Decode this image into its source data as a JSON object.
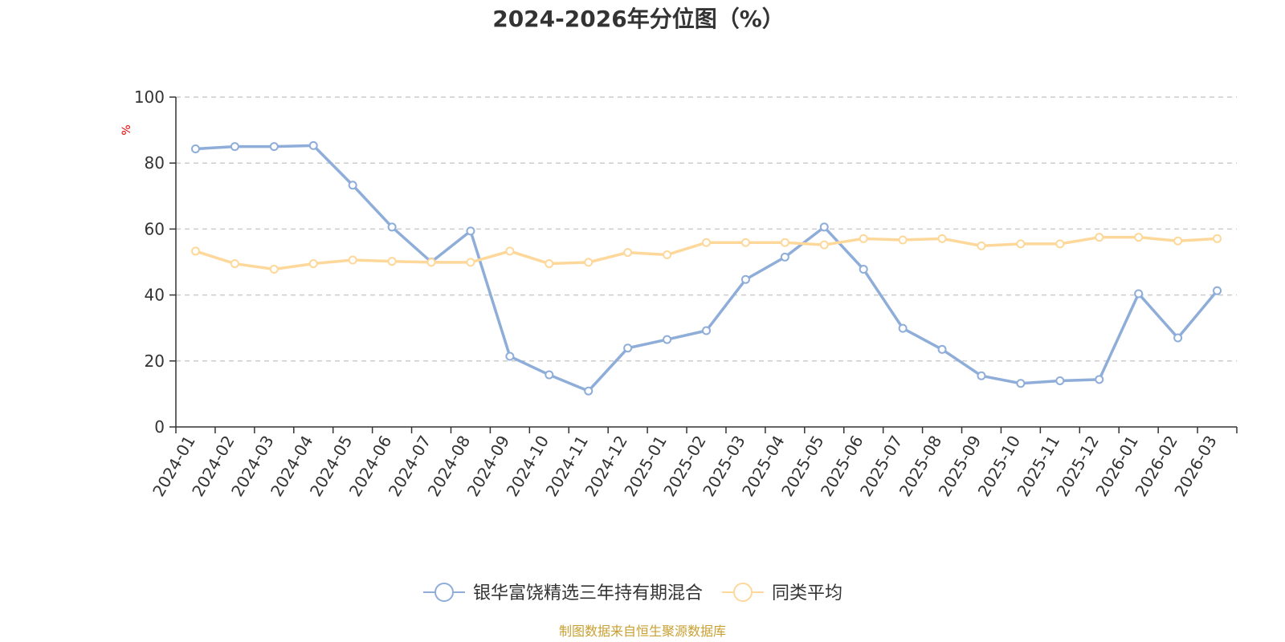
{
  "chart_data": {
    "type": "line",
    "title": "2024-2026年分位图（%）",
    "ylabel": "%",
    "xlabel": "",
    "ylim": [
      0,
      100
    ],
    "yticks": [
      0,
      20,
      40,
      60,
      80,
      100
    ],
    "grid": true,
    "legend_position": "bottom",
    "categories": [
      "2024-01",
      "2024-02",
      "2024-03",
      "2024-04",
      "2024-05",
      "2024-06",
      "2024-07",
      "2024-08",
      "2024-09",
      "2024-10",
      "2024-11",
      "2024-12",
      "2025-01",
      "2025-02",
      "2025-03",
      "2025-04",
      "2025-05",
      "2025-06",
      "2025-07",
      "2025-08",
      "2025-09",
      "2025-10",
      "2025-11",
      "2025-12",
      "2026-01",
      "2026-02",
      "2026-03"
    ],
    "series": [
      {
        "name": "银华富饶精选三年持有期混合",
        "color": "#8eadd8",
        "values": [
          84.3,
          85.0,
          85.0,
          85.3,
          73.3,
          60.6,
          50.0,
          59.4,
          21.4,
          15.8,
          10.9,
          23.9,
          26.5,
          29.2,
          44.7,
          51.5,
          60.6,
          47.8,
          29.9,
          23.5,
          15.5,
          13.2,
          14.0,
          14.4,
          40.4,
          27.0,
          41.3
        ]
      },
      {
        "name": "同类平均",
        "color": "#fdd89a",
        "values": [
          53.3,
          49.5,
          47.8,
          49.5,
          50.6,
          50.2,
          49.9,
          49.9,
          53.3,
          49.5,
          49.9,
          52.9,
          52.2,
          55.9,
          55.9,
          55.9,
          55.2,
          57.1,
          56.7,
          57.1,
          54.9,
          55.5,
          55.5,
          57.5,
          57.5,
          56.4,
          57.1
        ]
      }
    ]
  },
  "source_text": "制图数据来自恒生聚源数据库",
  "source_color": "#c8a032"
}
